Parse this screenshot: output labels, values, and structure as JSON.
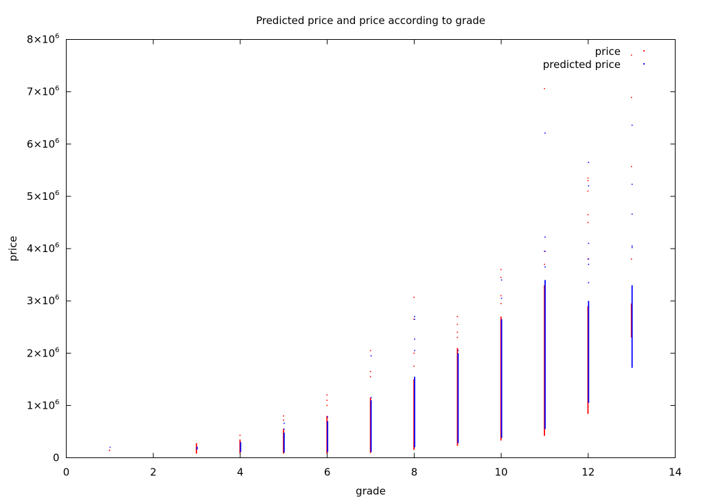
{
  "chart_data": {
    "type": "scatter",
    "title": "Predicted price and price according to grade",
    "xlabel": "grade",
    "ylabel": "price",
    "xlim": [
      0,
      14
    ],
    "ylim": [
      0,
      8000000
    ],
    "x_ticks": [
      {
        "value": 0,
        "label": "0"
      },
      {
        "value": 2,
        "label": "2"
      },
      {
        "value": 4,
        "label": "4"
      },
      {
        "value": 6,
        "label": "6"
      },
      {
        "value": 8,
        "label": "8"
      },
      {
        "value": 10,
        "label": "10"
      },
      {
        "value": 12,
        "label": "12"
      },
      {
        "value": 14,
        "label": "14"
      }
    ],
    "y_ticks": [
      {
        "value": 0,
        "mantissa": "0",
        "exp": ""
      },
      {
        "value": 1000000,
        "mantissa": "1×10",
        "exp": "6"
      },
      {
        "value": 2000000,
        "mantissa": "2×10",
        "exp": "6"
      },
      {
        "value": 3000000,
        "mantissa": "3×10",
        "exp": "6"
      },
      {
        "value": 4000000,
        "mantissa": "4×10",
        "exp": "6"
      },
      {
        "value": 5000000,
        "mantissa": "5×10",
        "exp": "6"
      },
      {
        "value": 6000000,
        "mantissa": "6×10",
        "exp": "6"
      },
      {
        "value": 7000000,
        "mantissa": "7×10",
        "exp": "6"
      },
      {
        "value": 8000000,
        "mantissa": "8×10",
        "exp": "6"
      }
    ],
    "legend_position": "top-right",
    "grid": false,
    "series": [
      {
        "name": "price",
        "color": "#ff0000",
        "groups": [
          {
            "x": 1,
            "min": 142000,
            "max": 142000,
            "outliers": []
          },
          {
            "x": 3,
            "min": 80000,
            "max": 280000,
            "outliers": []
          },
          {
            "x": 4,
            "min": 80000,
            "max": 350000,
            "outliers": [
              430000
            ]
          },
          {
            "x": 5,
            "min": 80000,
            "max": 550000,
            "outliers": [
              720000,
              800000
            ]
          },
          {
            "x": 6,
            "min": 80000,
            "max": 800000,
            "outliers": [
              1000000,
              1100000,
              1200000
            ]
          },
          {
            "x": 7,
            "min": 90000,
            "max": 1150000,
            "outliers": [
              1550000,
              1650000,
              2050000
            ]
          },
          {
            "x": 8,
            "min": 150000,
            "max": 1500000,
            "outliers": [
              1750000,
              2000000,
              2650000,
              3070000
            ]
          },
          {
            "x": 9,
            "min": 230000,
            "max": 2100000,
            "outliers": [
              2300000,
              2400000,
              2550000,
              2700000
            ]
          },
          {
            "x": 10,
            "min": 330000,
            "max": 2700000,
            "outliers": [
              2950000,
              3100000,
              3450000,
              3600000
            ]
          },
          {
            "x": 11,
            "min": 420000,
            "max": 3300000,
            "outliers": [
              3700000,
              3950000,
              7060000
            ]
          },
          {
            "x": 12,
            "min": 840000,
            "max": 2900000,
            "outliers": [
              3800000,
              4500000,
              4650000,
              5100000,
              5300000,
              5350000
            ]
          },
          {
            "x": 13,
            "min": 2300000,
            "max": 2950000,
            "outliers": [
              3800000,
              5570000,
              6890000,
              7700000
            ]
          }
        ]
      },
      {
        "name": "predicted price",
        "color": "#0000ff",
        "groups": [
          {
            "x": 1,
            "min": 200000,
            "max": 210000,
            "outliers": []
          },
          {
            "x": 3,
            "min": 160000,
            "max": 210000,
            "outliers": []
          },
          {
            "x": 4,
            "min": 110000,
            "max": 300000,
            "outliers": []
          },
          {
            "x": 5,
            "min": 100000,
            "max": 480000,
            "outliers": [
              550000,
              660000
            ]
          },
          {
            "x": 6,
            "min": 110000,
            "max": 700000,
            "outliers": [
              780000
            ]
          },
          {
            "x": 7,
            "min": 110000,
            "max": 1100000,
            "outliers": [
              1150000,
              1950000
            ]
          },
          {
            "x": 8,
            "min": 200000,
            "max": 1550000,
            "outliers": [
              2050000,
              2270000,
              2650000,
              2700000
            ]
          },
          {
            "x": 9,
            "min": 280000,
            "max": 2000000,
            "outliers": [
              2050000
            ]
          },
          {
            "x": 10,
            "min": 380000,
            "max": 2650000,
            "outliers": [
              3050000,
              3400000
            ]
          },
          {
            "x": 11,
            "min": 550000,
            "max": 3400000,
            "outliers": [
              3650000,
              3950000,
              4220000,
              6210000
            ]
          },
          {
            "x": 12,
            "min": 1050000,
            "max": 3000000,
            "outliers": [
              3350000,
              3700000,
              3800000,
              4100000,
              5200000,
              5650000
            ]
          },
          {
            "x": 13,
            "min": 1720000,
            "max": 3300000,
            "outliers": [
              4020000,
              4050000,
              4660000,
              5230000,
              6360000
            ]
          }
        ]
      }
    ]
  }
}
